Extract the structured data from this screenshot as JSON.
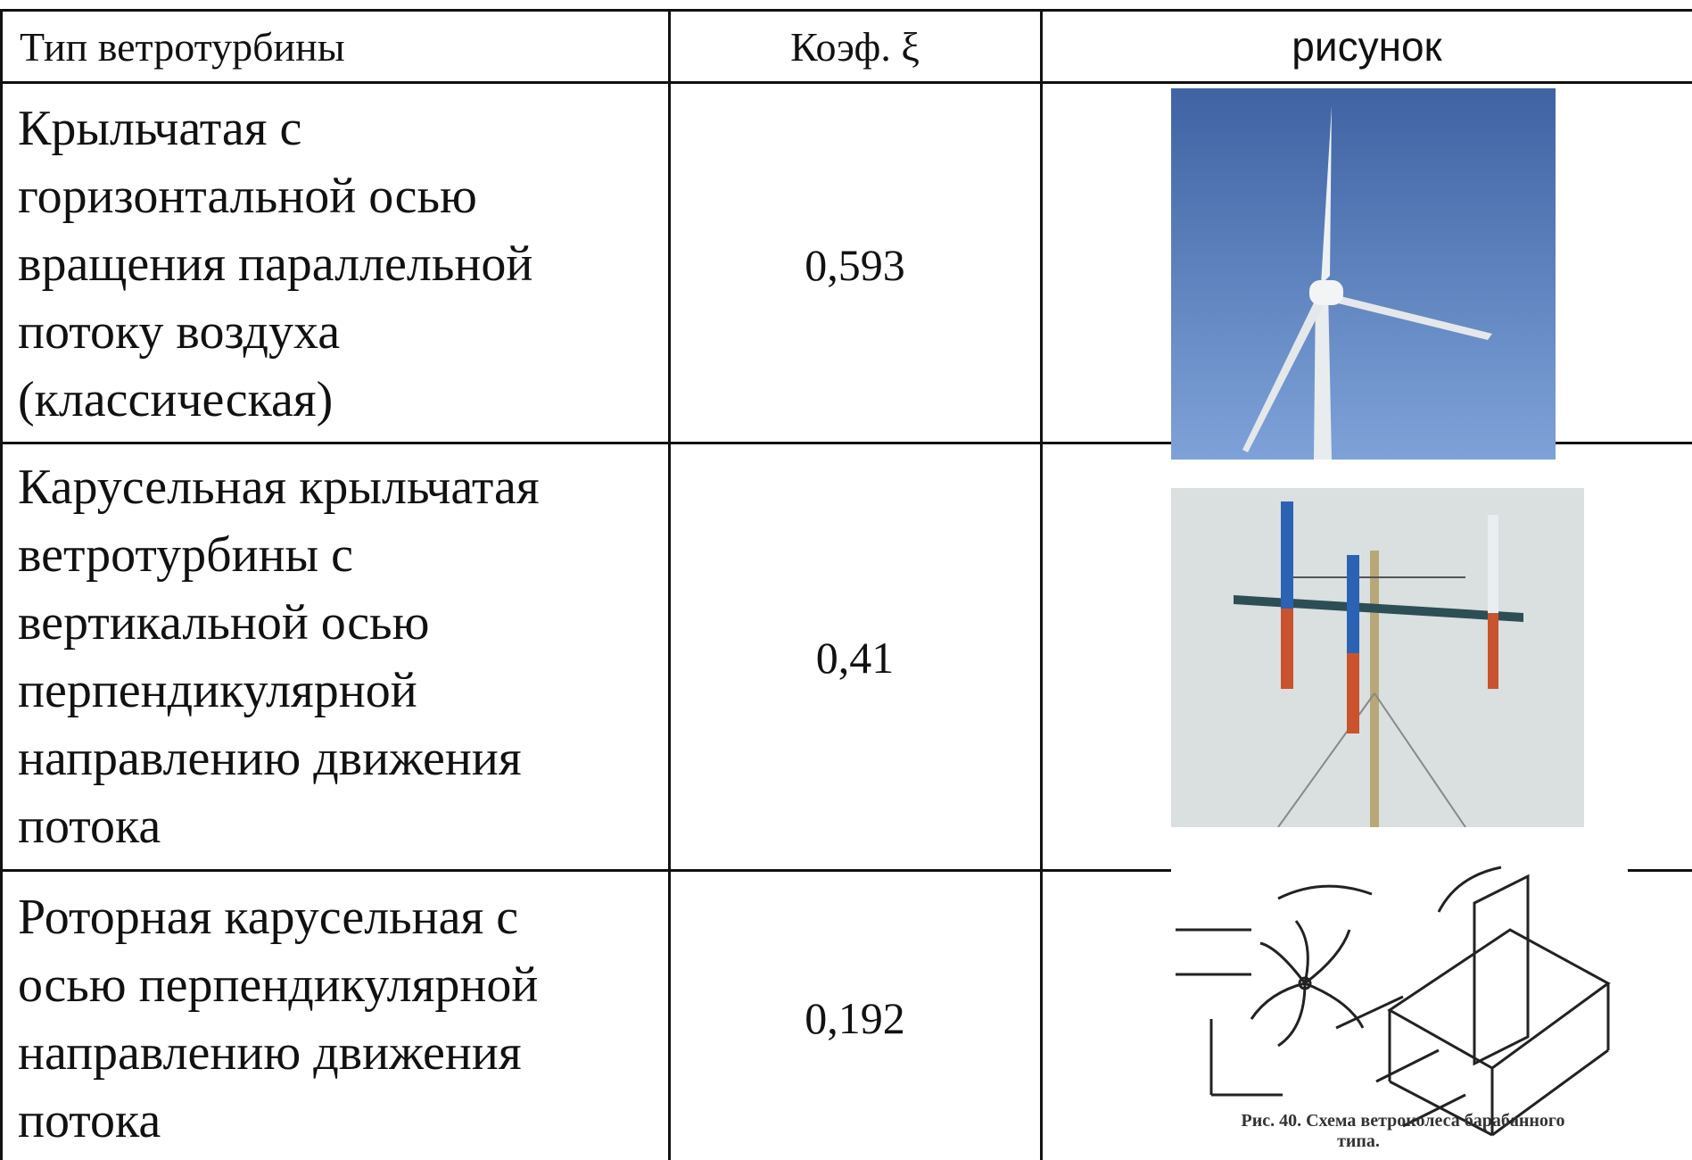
{
  "table": {
    "header": [
      "Тип ветротурбины",
      "Коэф. ξ",
      "рисунок"
    ],
    "rows": [
      {
        "type": [
          "Крыльчатая с",
          "горизонтальной осью",
          "вращения параллельной",
          "потоку воздуха",
          "(классическая)"
        ],
        "coef": "0,593"
      },
      {
        "type": [
          "Карусельная крыльчатая",
          "ветротурбины с",
          "вертикальной осью",
          "перпендикулярной",
          "направлению движения",
          "потока"
        ],
        "coef": "0,41"
      },
      {
        "type": [
          "Роторная карусельная с",
          "осью перпендикулярной",
          "направлению движения",
          "потока"
        ],
        "coef": "0,192",
        "image_caption": [
          "Рис. 40. Схема ветроколеса барабанного",
          "типа."
        ]
      }
    ]
  }
}
